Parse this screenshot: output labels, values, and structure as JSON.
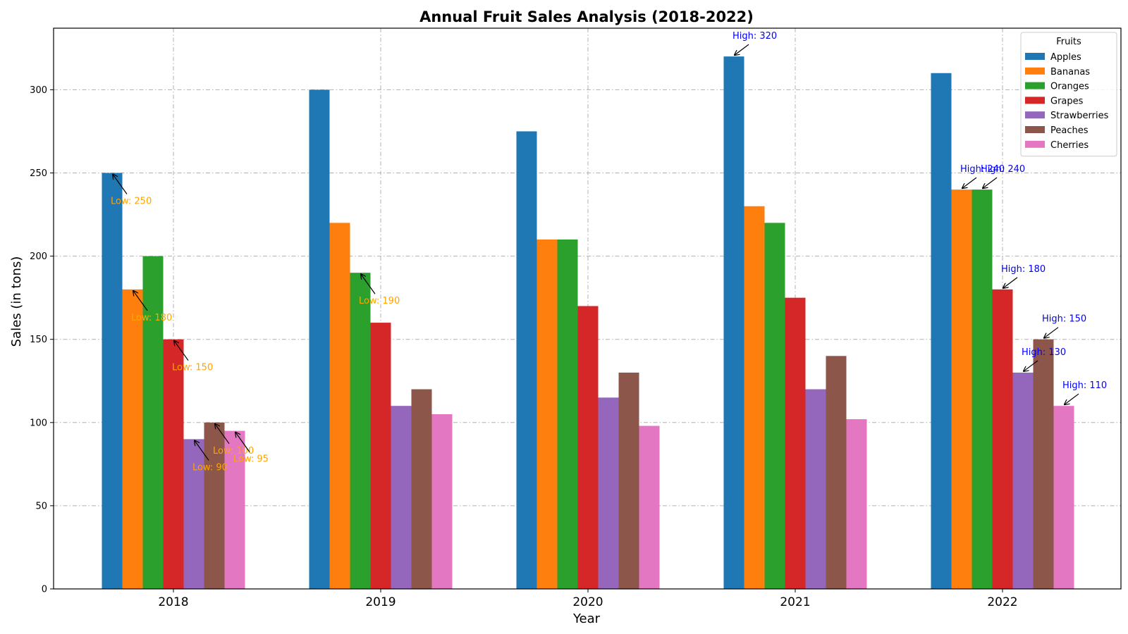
{
  "chart_data": {
    "type": "bar",
    "title": "Annual Fruit Sales Analysis (2018-2022)",
    "xlabel": "Year",
    "ylabel": "Sales (in tons)",
    "categories": [
      "2018",
      "2019",
      "2020",
      "2021",
      "2022"
    ],
    "ylim": [
      0,
      337
    ],
    "yticks": [
      0,
      50,
      100,
      150,
      200,
      250,
      300
    ],
    "grid": true,
    "legend": {
      "title": "Fruits",
      "placement": "top-right"
    },
    "series": [
      {
        "name": "Apples",
        "color": "#1f77b4",
        "values": [
          250,
          300,
          275,
          320,
          310
        ]
      },
      {
        "name": "Bananas",
        "color": "#ff7f0e",
        "values": [
          180,
          220,
          210,
          230,
          240
        ]
      },
      {
        "name": "Oranges",
        "color": "#2ca02c",
        "values": [
          200,
          190,
          210,
          220,
          240
        ]
      },
      {
        "name": "Grapes",
        "color": "#d62728",
        "values": [
          150,
          160,
          170,
          175,
          180
        ]
      },
      {
        "name": "Strawberries",
        "color": "#9467bd",
        "values": [
          90,
          110,
          115,
          120,
          130
        ]
      },
      {
        "name": "Peaches",
        "color": "#8c564b",
        "values": [
          100,
          120,
          130,
          140,
          150
        ]
      },
      {
        "name": "Cherries",
        "color": "#e377c2",
        "values": [
          95,
          105,
          98,
          102,
          110
        ]
      }
    ],
    "annotations": [
      {
        "series": 0,
        "category": 0,
        "text": "Low: 250",
        "kind": "low"
      },
      {
        "series": 1,
        "category": 0,
        "text": "Low: 180",
        "kind": "low"
      },
      {
        "series": 2,
        "category": 1,
        "text": "Low: 190",
        "kind": "low"
      },
      {
        "series": 3,
        "category": 0,
        "text": "Low: 150",
        "kind": "low"
      },
      {
        "series": 4,
        "category": 0,
        "text": "Low: 90",
        "kind": "low"
      },
      {
        "series": 5,
        "category": 0,
        "text": "Low: 100",
        "kind": "low"
      },
      {
        "series": 6,
        "category": 0,
        "text": "Low: 95",
        "kind": "low"
      },
      {
        "series": 0,
        "category": 3,
        "text": "High: 320",
        "kind": "high"
      },
      {
        "series": 1,
        "category": 4,
        "text": "High: 240",
        "kind": "high"
      },
      {
        "series": 2,
        "category": 4,
        "text": "High: 240",
        "kind": "high"
      },
      {
        "series": 3,
        "category": 4,
        "text": "High: 180",
        "kind": "high"
      },
      {
        "series": 4,
        "category": 4,
        "text": "High: 130",
        "kind": "high"
      },
      {
        "series": 5,
        "category": 4,
        "text": "High: 150",
        "kind": "high"
      },
      {
        "series": 6,
        "category": 4,
        "text": "High: 110",
        "kind": "high"
      }
    ],
    "annotation_colors": {
      "low": "#ffa500",
      "high": "#0000ff"
    }
  }
}
